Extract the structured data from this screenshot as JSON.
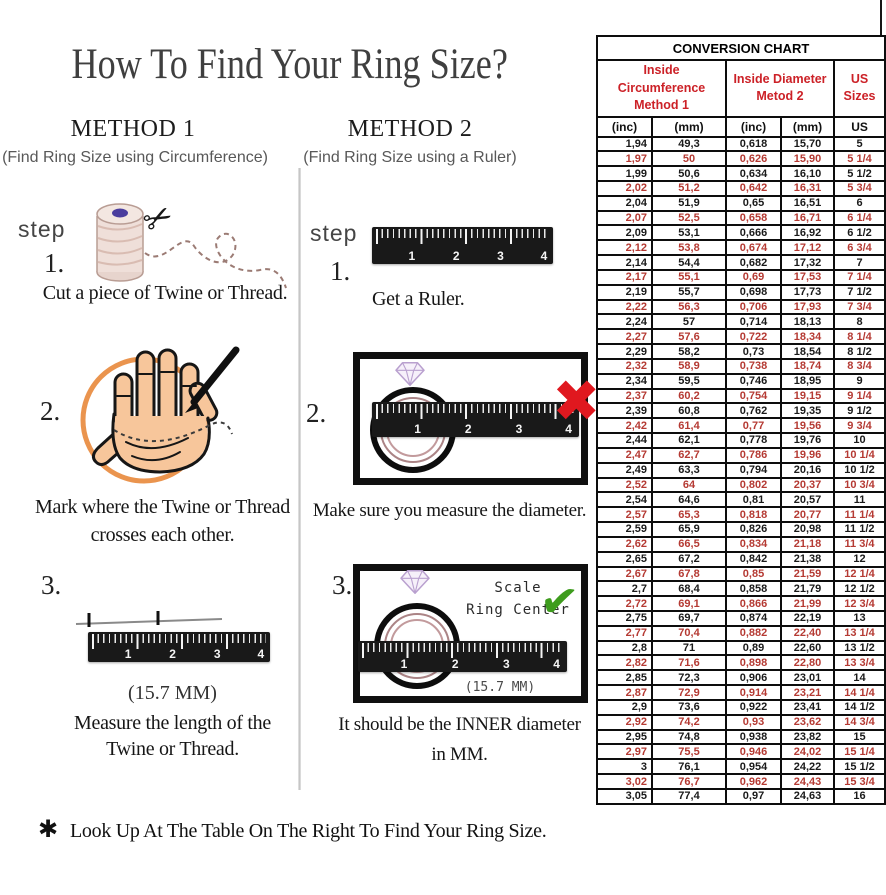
{
  "page": {
    "title": "How To Find Your Ring Size?",
    "footer_mark": "✱",
    "footer_text": "Look Up At The Table On The Right To Find Your Ring Size."
  },
  "method1": {
    "heading": "METHOD 1",
    "subheading": "(Find Ring Size using Circumference)",
    "step_label": "step",
    "step1": {
      "num": "1.",
      "caption": "Cut a piece of Twine or Thread."
    },
    "step2": {
      "num": "2.",
      "caption_line1": "Mark where the Twine or Thread",
      "caption_line2": "crosses each other."
    },
    "step3": {
      "num": "3.",
      "measurement": "(15.7 MM)",
      "caption_line1": "Measure the length of the",
      "caption_line2": "Twine or Thread."
    }
  },
  "method2": {
    "heading": "METHOD 2",
    "subheading": "(Find Ring Size using a Ruler)",
    "step_label": "step",
    "step1": {
      "num": "1.",
      "caption": "Get a Ruler."
    },
    "step2": {
      "num": "2.",
      "caption": "Make sure you measure the diameter."
    },
    "step3": {
      "num": "3.",
      "scale_line1": "Scale",
      "scale_line2": "Ring Center",
      "measurement": "(15.7 MM)",
      "caption_line1": "It should be the INNER diameter",
      "caption_line2": "in MM."
    }
  },
  "icons": {
    "scissors": "✂",
    "cross_mark": "✖",
    "check_mark": "✔"
  },
  "ruler_numbers": [
    "1",
    "2",
    "3",
    "4"
  ],
  "conversion_chart": {
    "title": "CONVERSION CHART",
    "col_groups": [
      {
        "line1": "Inside Circumference",
        "line2": "Method 1",
        "span": 2
      },
      {
        "line1": "Inside Diameter",
        "line2": "Metod 2",
        "span": 2
      },
      {
        "line1": "US Sizes",
        "line2": "",
        "span": 1
      }
    ],
    "sub_headers": [
      "(inc)",
      "(mm)",
      "(inc)",
      "(mm)",
      "US"
    ],
    "rows": [
      [
        "1,94",
        "49,3",
        "0,618",
        "15,70",
        "5",
        0
      ],
      [
        "1,97",
        "50",
        "0,626",
        "15,90",
        "5 1/4",
        1
      ],
      [
        "1,99",
        "50,6",
        "0,634",
        "16,10",
        "5 1/2",
        0
      ],
      [
        "2,02",
        "51,2",
        "0,642",
        "16,31",
        "5 3/4",
        1
      ],
      [
        "2,04",
        "51,9",
        "0,65",
        "16,51",
        "6",
        0
      ],
      [
        "2,07",
        "52,5",
        "0,658",
        "16,71",
        "6 1/4",
        1
      ],
      [
        "2,09",
        "53,1",
        "0,666",
        "16,92",
        "6 1/2",
        0
      ],
      [
        "2,12",
        "53,8",
        "0,674",
        "17,12",
        "6 3/4",
        1
      ],
      [
        "2,14",
        "54,4",
        "0,682",
        "17,32",
        "7",
        0
      ],
      [
        "2,17",
        "55,1",
        "0,69",
        "17,53",
        "7 1/4",
        1
      ],
      [
        "2,19",
        "55,7",
        "0,698",
        "17,73",
        "7 1/2",
        0
      ],
      [
        "2,22",
        "56,3",
        "0,706",
        "17,93",
        "7 3/4",
        1
      ],
      [
        "2,24",
        "57",
        "0,714",
        "18,13",
        "8",
        0
      ],
      [
        "2,27",
        "57,6",
        "0,722",
        "18,34",
        "8 1/4",
        1
      ],
      [
        "2,29",
        "58,2",
        "0,73",
        "18,54",
        "8 1/2",
        0
      ],
      [
        "2,32",
        "58,9",
        "0,738",
        "18,74",
        "8 3/4",
        1
      ],
      [
        "2,34",
        "59,5",
        "0,746",
        "18,95",
        "9",
        0
      ],
      [
        "2,37",
        "60,2",
        "0,754",
        "19,15",
        "9 1/4",
        1
      ],
      [
        "2,39",
        "60,8",
        "0,762",
        "19,35",
        "9 1/2",
        0
      ],
      [
        "2,42",
        "61,4",
        "0,77",
        "19,56",
        "9 3/4",
        1
      ],
      [
        "2,44",
        "62,1",
        "0,778",
        "19,76",
        "10",
        0
      ],
      [
        "2,47",
        "62,7",
        "0,786",
        "19,96",
        "10 1/4",
        1
      ],
      [
        "2,49",
        "63,3",
        "0,794",
        "20,16",
        "10 1/2",
        0
      ],
      [
        "2,52",
        "64",
        "0,802",
        "20,37",
        "10 3/4",
        1
      ],
      [
        "2,54",
        "64,6",
        "0,81",
        "20,57",
        "11",
        0
      ],
      [
        "2,57",
        "65,3",
        "0,818",
        "20,77",
        "11 1/4",
        1
      ],
      [
        "2,59",
        "65,9",
        "0,826",
        "20,98",
        "11 1/2",
        0
      ],
      [
        "2,62",
        "66,5",
        "0,834",
        "21,18",
        "11 3/4",
        1
      ],
      [
        "2,65",
        "67,2",
        "0,842",
        "21,38",
        "12",
        0
      ],
      [
        "2,67",
        "67,8",
        "0,85",
        "21,59",
        "12 1/4",
        1
      ],
      [
        "2,7",
        "68,4",
        "0,858",
        "21,79",
        "12 1/2",
        0
      ],
      [
        "2,72",
        "69,1",
        "0,866",
        "21,99",
        "12 3/4",
        1
      ],
      [
        "2,75",
        "69,7",
        "0,874",
        "22,19",
        "13",
        0
      ],
      [
        "2,77",
        "70,4",
        "0,882",
        "22,40",
        "13 1/4",
        1
      ],
      [
        "2,8",
        "71",
        "0,89",
        "22,60",
        "13 1/2",
        0
      ],
      [
        "2,82",
        "71,6",
        "0,898",
        "22,80",
        "13 3/4",
        1
      ],
      [
        "2,85",
        "72,3",
        "0,906",
        "23,01",
        "14",
        0
      ],
      [
        "2,87",
        "72,9",
        "0,914",
        "23,21",
        "14 1/4",
        1
      ],
      [
        "2,9",
        "73,6",
        "0,922",
        "23,41",
        "14 1/2",
        0
      ],
      [
        "2,92",
        "74,2",
        "0,93",
        "23,62",
        "14 3/4",
        1
      ],
      [
        "2,95",
        "74,8",
        "0,938",
        "23,82",
        "15",
        0
      ],
      [
        "2,97",
        "75,5",
        "0,946",
        "24,02",
        "15 1/4",
        1
      ],
      [
        "3",
        "76,1",
        "0,954",
        "24,22",
        "15 1/2",
        0
      ],
      [
        "3,02",
        "76,7",
        "0,962",
        "24,43",
        "15 3/4",
        1
      ],
      [
        "3,05",
        "77,4",
        "0,97",
        "24,63",
        "16",
        0
      ]
    ]
  },
  "colors": {
    "table_header_red": "#cc2127",
    "table_row_red": "#b53a33",
    "orange_circle": "#e8883b",
    "hand_skin": "#f7c69b",
    "ring_pink": "#ab8486",
    "gem_purple": "#b9a0cf",
    "check_green": "#3e9c1d",
    "cross_red": "#e0181f"
  }
}
